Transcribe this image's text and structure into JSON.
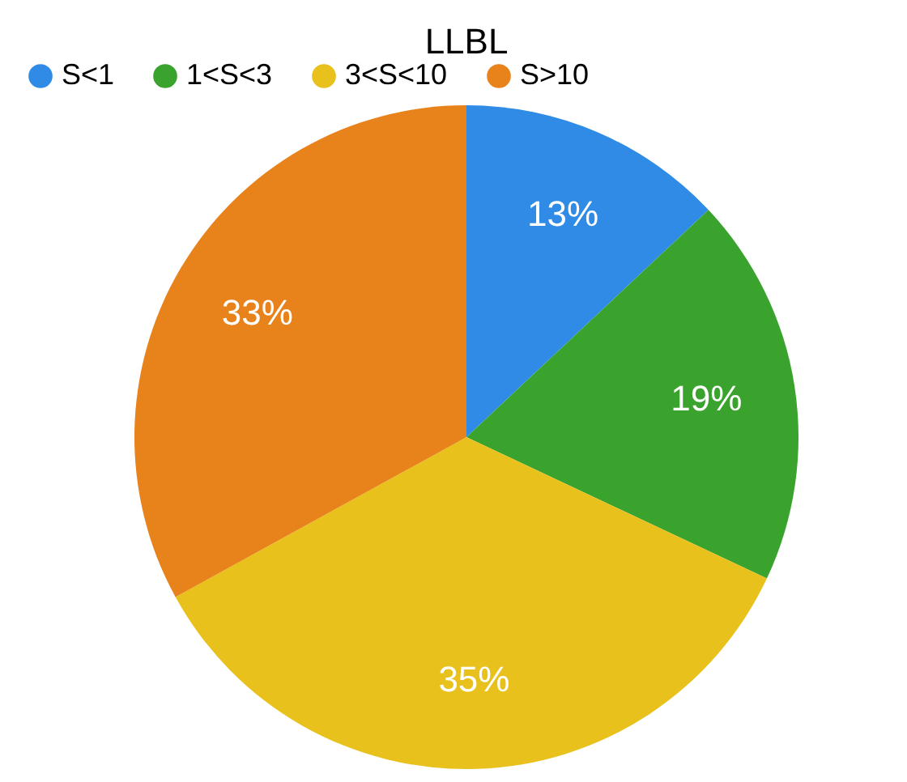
{
  "chart_data": {
    "type": "pie",
    "title": "LLBL",
    "categories": [
      "S<1",
      "1<S<3",
      "3<S<10",
      "S>10"
    ],
    "values": [
      13,
      19,
      35,
      33
    ],
    "colors": [
      "#2f8be6",
      "#3aa32e",
      "#e8c11c",
      "#e8821a"
    ],
    "value_labels": [
      "13%",
      "19%",
      "35%",
      "33%"
    ],
    "legend": "top"
  }
}
